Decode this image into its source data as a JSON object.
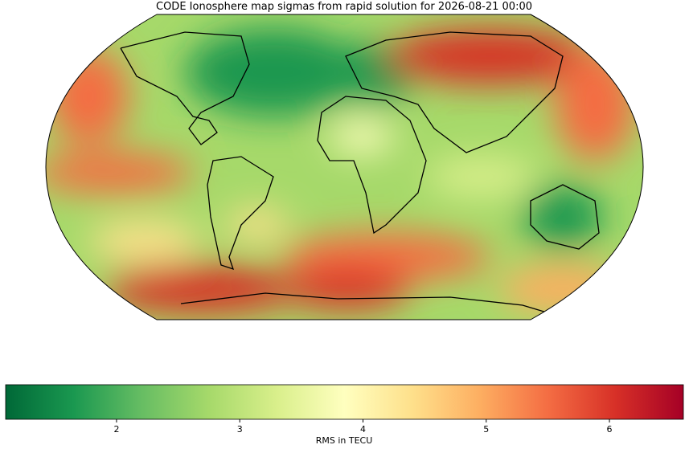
{
  "title": "CODE Ionosphere map sigmas from rapid solution for 2026-08-21 00:00",
  "colorbar": {
    "label": "RMS in TECU",
    "lim": [
      1.1,
      6.6
    ],
    "ticks": [
      2,
      3,
      4,
      5,
      6
    ],
    "colors": [
      "#006837",
      "#1a9850",
      "#66bd63",
      "#a6d96a",
      "#d9ef8b",
      "#ffffbf",
      "#fee08b",
      "#fdae61",
      "#f46d43",
      "#d73027",
      "#a50026"
    ]
  }
}
